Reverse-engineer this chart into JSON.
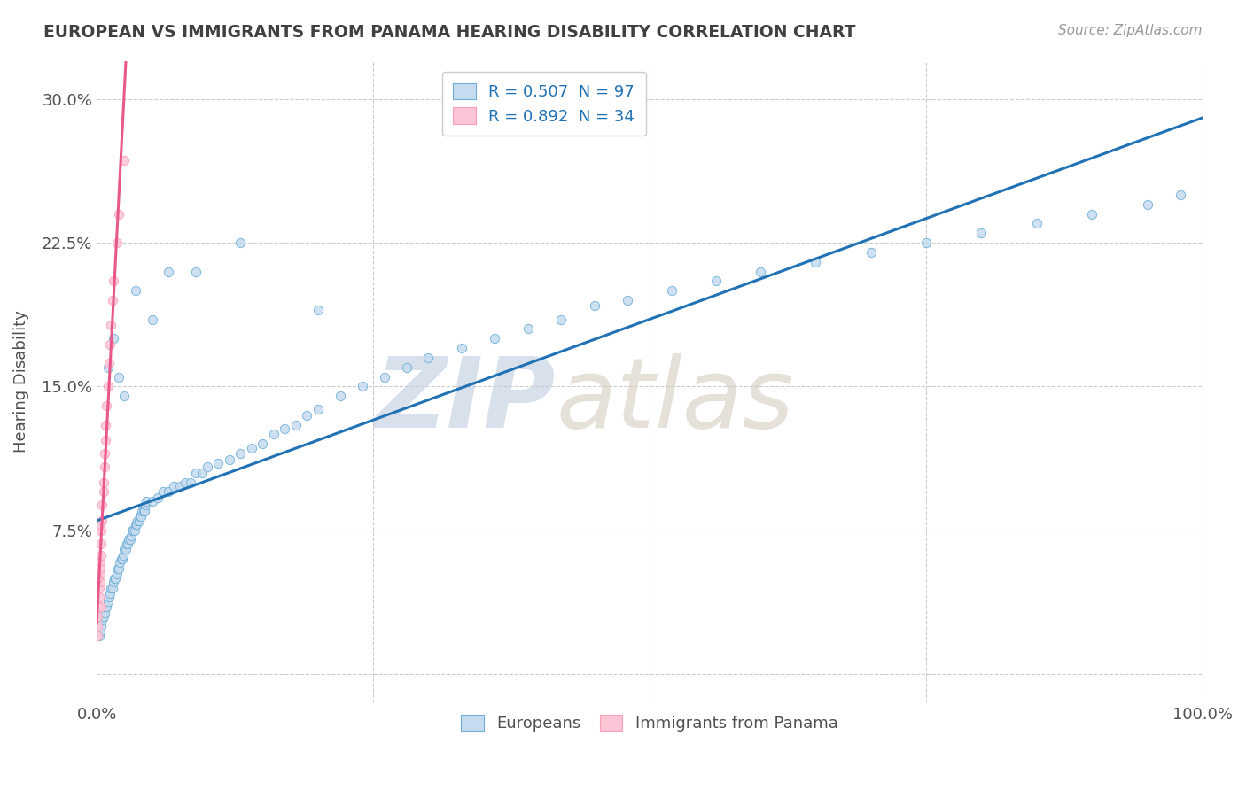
{
  "title": "EUROPEAN VS IMMIGRANTS FROM PANAMA HEARING DISABILITY CORRELATION CHART",
  "source_text": "Source: ZipAtlas.com",
  "ylabel": "Hearing Disability",
  "xlim": [
    0,
    1.0
  ],
  "ylim": [
    -0.015,
    0.32
  ],
  "xticks": [
    0.0,
    0.25,
    0.5,
    0.75,
    1.0
  ],
  "xticklabels": [
    "0.0%",
    "",
    "",
    "",
    "100.0%"
  ],
  "yticks": [
    0.0,
    0.075,
    0.15,
    0.225,
    0.3
  ],
  "yticklabels": [
    "",
    "7.5%",
    "15.0%",
    "22.5%",
    "30.0%"
  ],
  "legend_label1": "Europeans",
  "legend_label2": "Immigrants from Panama",
  "R1": 0.507,
  "N1": 97,
  "R2": 0.892,
  "N2": 34,
  "blue_fill": "#c6dbef",
  "blue_edge": "#6baed6",
  "pink_fill": "#fcc5d5",
  "pink_edge": "#fa9fb5",
  "blue_line_color": "#2171b5",
  "pink_line_color": "#e8588a",
  "pink_dash_color": "#f0a0b8",
  "background_color": "#ffffff",
  "grid_color": "#cccccc",
  "eu_x": [
    0.002,
    0.003,
    0.004,
    0.005,
    0.006,
    0.007,
    0.008,
    0.009,
    0.01,
    0.011,
    0.012,
    0.013,
    0.014,
    0.015,
    0.016,
    0.017,
    0.018,
    0.019,
    0.02,
    0.021,
    0.022,
    0.023,
    0.024,
    0.025,
    0.026,
    0.027,
    0.028,
    0.029,
    0.03,
    0.031,
    0.032,
    0.033,
    0.034,
    0.035,
    0.036,
    0.037,
    0.038,
    0.039,
    0.04,
    0.041,
    0.042,
    0.043,
    0.044,
    0.045,
    0.05,
    0.055,
    0.06,
    0.065,
    0.07,
    0.075,
    0.08,
    0.085,
    0.09,
    0.095,
    0.1,
    0.11,
    0.12,
    0.13,
    0.14,
    0.15,
    0.16,
    0.17,
    0.18,
    0.19,
    0.2,
    0.22,
    0.24,
    0.26,
    0.28,
    0.3,
    0.33,
    0.36,
    0.39,
    0.42,
    0.45,
    0.48,
    0.52,
    0.56,
    0.6,
    0.65,
    0.7,
    0.75,
    0.8,
    0.85,
    0.9,
    0.95,
    0.98,
    0.01,
    0.015,
    0.02,
    0.025,
    0.035,
    0.05,
    0.065,
    0.09,
    0.13,
    0.2
  ],
  "eu_y": [
    0.02,
    0.022,
    0.025,
    0.028,
    0.03,
    0.032,
    0.035,
    0.035,
    0.038,
    0.04,
    0.042,
    0.045,
    0.045,
    0.048,
    0.05,
    0.05,
    0.052,
    0.055,
    0.055,
    0.058,
    0.06,
    0.06,
    0.062,
    0.065,
    0.065,
    0.068,
    0.068,
    0.07,
    0.07,
    0.072,
    0.075,
    0.075,
    0.075,
    0.078,
    0.078,
    0.08,
    0.08,
    0.082,
    0.082,
    0.085,
    0.085,
    0.085,
    0.088,
    0.09,
    0.09,
    0.092,
    0.095,
    0.095,
    0.098,
    0.098,
    0.1,
    0.1,
    0.105,
    0.105,
    0.108,
    0.11,
    0.112,
    0.115,
    0.118,
    0.12,
    0.125,
    0.128,
    0.13,
    0.135,
    0.138,
    0.145,
    0.15,
    0.155,
    0.16,
    0.165,
    0.17,
    0.175,
    0.18,
    0.185,
    0.192,
    0.195,
    0.2,
    0.205,
    0.21,
    0.215,
    0.22,
    0.225,
    0.23,
    0.235,
    0.24,
    0.245,
    0.25,
    0.16,
    0.175,
    0.155,
    0.145,
    0.2,
    0.185,
    0.21,
    0.21,
    0.225,
    0.19
  ],
  "pan_x": [
    0.001,
    0.001,
    0.001,
    0.002,
    0.002,
    0.002,
    0.003,
    0.003,
    0.003,
    0.004,
    0.004,
    0.004,
    0.005,
    0.005,
    0.006,
    0.006,
    0.007,
    0.007,
    0.008,
    0.008,
    0.009,
    0.01,
    0.011,
    0.012,
    0.013,
    0.014,
    0.015,
    0.018,
    0.02,
    0.025,
    0.001,
    0.002,
    0.003,
    0.004
  ],
  "pan_y": [
    0.02,
    0.025,
    0.03,
    0.035,
    0.04,
    0.045,
    0.048,
    0.052,
    0.058,
    0.062,
    0.068,
    0.075,
    0.08,
    0.088,
    0.095,
    0.1,
    0.108,
    0.115,
    0.122,
    0.13,
    0.14,
    0.15,
    0.162,
    0.172,
    0.182,
    0.195,
    0.205,
    0.225,
    0.24,
    0.268,
    0.05,
    0.078,
    0.055,
    0.035
  ]
}
